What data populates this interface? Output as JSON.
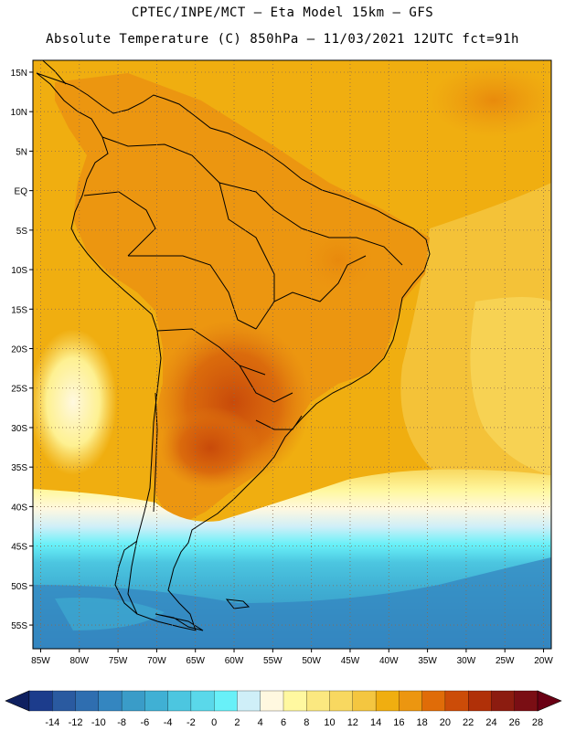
{
  "header": {
    "line1": "CPTEC/INPE/MCT —  Eta Model 15km — GFS",
    "line2": "Absolute Temperature (C) 850hPa — 11/03/2021 12UTC fct=91h"
  },
  "map": {
    "lat_labels": [
      "15N",
      "10N",
      "5N",
      "EQ",
      "5S",
      "10S",
      "15S",
      "20S",
      "25S",
      "30S",
      "35S",
      "40S",
      "45S",
      "50S",
      "55S"
    ],
    "lat_values": [
      15,
      10,
      5,
      0,
      -5,
      -10,
      -15,
      -20,
      -25,
      -30,
      -35,
      -40,
      -45,
      -50,
      -55
    ],
    "lon_labels": [
      "85W",
      "80W",
      "75W",
      "70W",
      "65W",
      "60W",
      "55W",
      "50W",
      "45W",
      "40W",
      "35W",
      "30W",
      "25W",
      "20W"
    ],
    "lon_values": [
      -85,
      -80,
      -75,
      -70,
      -65,
      -60,
      -55,
      -50,
      -45,
      -40,
      -35,
      -30,
      -25,
      -20
    ],
    "lon_range": [
      -86,
      -19
    ],
    "lat_range": [
      -58,
      16.5
    ],
    "grid_style": "dotted"
  },
  "colorbar": {
    "labels": [
      "-14",
      "-12",
      "-10",
      "-8",
      "-6",
      "-4",
      "-2",
      "0",
      "2",
      "4",
      "6",
      "8",
      "10",
      "12",
      "14",
      "16",
      "18",
      "20",
      "22",
      "24",
      "26",
      "28"
    ],
    "colors": [
      "#1c3c8c",
      "#2a5aa0",
      "#2f6eb0",
      "#3486c0",
      "#3a9cc8",
      "#40b0d4",
      "#4cc6e0",
      "#5ad8ea",
      "#68f0f8",
      "#cfeff8",
      "#fff8e0",
      "#fff8a0",
      "#fbe880",
      "#f8d860",
      "#f4c640",
      "#f0ae10",
      "#ec9610",
      "#e06c08",
      "#cc4c08",
      "#b03008",
      "#8c1c10",
      "#7a0e14"
    ],
    "left_arrow_color": "#0f2060",
    "right_arrow_color": "#6a0014"
  },
  "colors": {
    "ocean_warm": "#f0ae10",
    "land_hot": "#ec9610",
    "core_hot": "#d0580c"
  }
}
